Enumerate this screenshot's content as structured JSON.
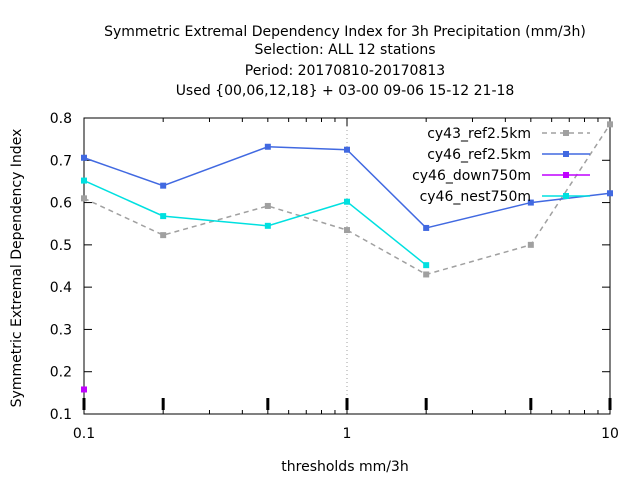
{
  "chart_data": {
    "type": "line",
    "title_lines": [
      "Symmetric Extremal Dependency Index  for 3h Precipitation (mm/3h)",
      "Selection: ALL      12 stations",
      "Period: 20170810-20170813",
      "Used {00,06,12,18} + 03-00 09-06 15-12 21-18"
    ],
    "xlabel": "thresholds mm/3h",
    "ylabel": "Symmetric Extremal Dependency Index",
    "xscale": "log",
    "xlim": [
      0.1,
      10
    ],
    "ylim": [
      0.1,
      0.8
    ],
    "xticks": [
      {
        "value": 0.1,
        "label": "0.1"
      },
      {
        "value": 1,
        "label": "1"
      },
      {
        "value": 10,
        "label": "10"
      }
    ],
    "yticks": [
      {
        "value": 0.1,
        "label": "0.1"
      },
      {
        "value": 0.2,
        "label": "0.2"
      },
      {
        "value": 0.3,
        "label": "0.3"
      },
      {
        "value": 0.4,
        "label": "0.4"
      },
      {
        "value": 0.5,
        "label": "0.5"
      },
      {
        "value": 0.6,
        "label": "0.6"
      },
      {
        "value": 0.7,
        "label": "0.7"
      },
      {
        "value": 0.8,
        "label": "0.8"
      }
    ],
    "threshold_marks": [
      0.1,
      0.2,
      0.5,
      1,
      2,
      5,
      10
    ],
    "grid": "dotted vertical at 1",
    "legend_position": "top-right",
    "series": [
      {
        "name": "cy43_ref2.5km",
        "color": "#a0a0a0",
        "dash": true,
        "x": [
          0.1,
          0.2,
          0.5,
          1,
          2,
          5,
          10
        ],
        "y": [
          0.61,
          0.523,
          0.592,
          0.535,
          0.43,
          0.5,
          0.785
        ]
      },
      {
        "name": "cy46_ref2.5km",
        "color": "#4169e1",
        "dash": false,
        "x": [
          0.1,
          0.2,
          0.5,
          1,
          2,
          5,
          10
        ],
        "y": [
          0.706,
          0.64,
          0.732,
          0.725,
          0.54,
          0.6,
          0.622
        ]
      },
      {
        "name": "cy46_down750m",
        "color": "#c000ff",
        "dash": false,
        "x": [
          0.1
        ],
        "y": [
          0.158
        ]
      },
      {
        "name": "cy46_nest750m",
        "color": "#00e0e0",
        "dash": false,
        "x": [
          0.1,
          0.2,
          0.5,
          1,
          2
        ],
        "y": [
          0.652,
          0.568,
          0.545,
          0.602,
          0.452
        ]
      }
    ]
  }
}
